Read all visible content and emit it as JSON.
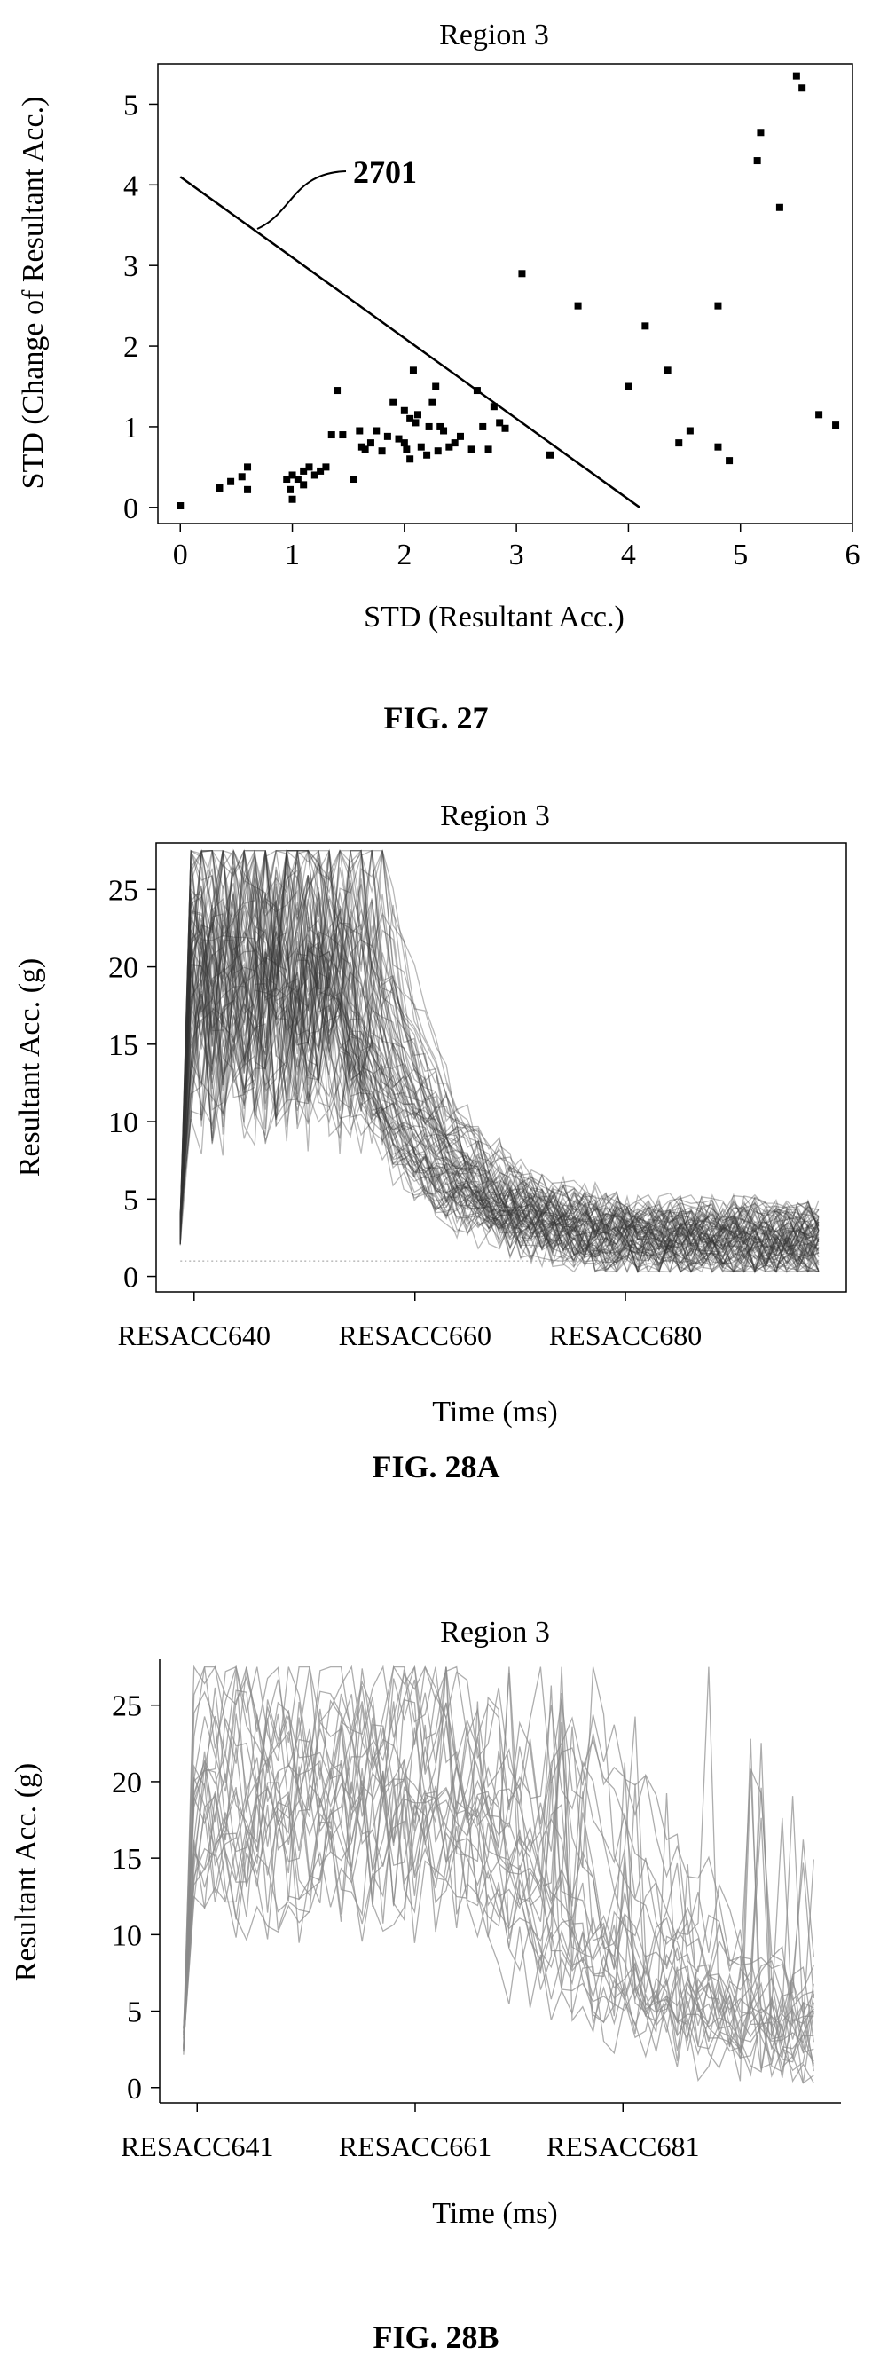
{
  "figures": [
    {
      "label": "FIG. 27"
    },
    {
      "label": "FIG. 28A"
    },
    {
      "label": "FIG. 28B"
    }
  ],
  "chart_data": [
    {
      "type": "scatter",
      "title": "Region 3",
      "xlabel": "STD (Resultant Acc.)",
      "ylabel": "STD (Change of Resultant Acc.)",
      "xlim": [
        -0.2,
        6.0
      ],
      "ylim": [
        -0.2,
        5.5
      ],
      "xticks": [
        0,
        1,
        2,
        3,
        4,
        5,
        6
      ],
      "yticks": [
        0,
        1,
        2,
        3,
        4,
        5
      ],
      "points": [
        [
          0.0,
          0.02
        ],
        [
          0.35,
          0.24
        ],
        [
          0.45,
          0.32
        ],
        [
          0.55,
          0.38
        ],
        [
          0.6,
          0.5
        ],
        [
          0.6,
          0.22
        ],
        [
          0.95,
          0.35
        ],
        [
          0.98,
          0.22
        ],
        [
          1.0,
          0.1
        ],
        [
          1.0,
          0.4
        ],
        [
          1.05,
          0.35
        ],
        [
          1.1,
          0.45
        ],
        [
          1.1,
          0.28
        ],
        [
          1.15,
          0.5
        ],
        [
          1.2,
          0.4
        ],
        [
          1.25,
          0.45
        ],
        [
          1.3,
          0.5
        ],
        [
          1.35,
          0.9
        ],
        [
          1.4,
          1.45
        ],
        [
          1.45,
          0.9
        ],
        [
          1.55,
          0.35
        ],
        [
          1.6,
          0.95
        ],
        [
          1.62,
          0.75
        ],
        [
          1.65,
          0.72
        ],
        [
          1.7,
          0.8
        ],
        [
          1.75,
          0.95
        ],
        [
          1.8,
          0.7
        ],
        [
          1.85,
          0.88
        ],
        [
          1.9,
          1.3
        ],
        [
          1.95,
          0.85
        ],
        [
          2.0,
          1.2
        ],
        [
          2.0,
          0.8
        ],
        [
          2.02,
          0.72
        ],
        [
          2.05,
          1.1
        ],
        [
          2.05,
          0.6
        ],
        [
          2.08,
          1.7
        ],
        [
          2.1,
          1.05
        ],
        [
          2.12,
          1.15
        ],
        [
          2.15,
          0.75
        ],
        [
          2.2,
          0.65
        ],
        [
          2.22,
          1.0
        ],
        [
          2.25,
          1.3
        ],
        [
          2.28,
          1.5
        ],
        [
          2.3,
          0.7
        ],
        [
          2.32,
          1.0
        ],
        [
          2.35,
          0.95
        ],
        [
          2.4,
          0.75
        ],
        [
          2.45,
          0.8
        ],
        [
          2.5,
          0.88
        ],
        [
          2.6,
          0.72
        ],
        [
          2.65,
          1.45
        ],
        [
          2.7,
          1.0
        ],
        [
          2.75,
          0.72
        ],
        [
          2.8,
          1.25
        ],
        [
          2.85,
          1.05
        ],
        [
          2.9,
          0.98
        ],
        [
          3.05,
          2.9
        ],
        [
          3.3,
          0.65
        ],
        [
          3.55,
          2.5
        ],
        [
          4.0,
          1.5
        ],
        [
          4.15,
          2.25
        ],
        [
          4.35,
          1.7
        ],
        [
          4.45,
          0.8
        ],
        [
          4.55,
          0.95
        ],
        [
          4.8,
          2.5
        ],
        [
          4.8,
          0.75
        ],
        [
          4.9,
          0.58
        ],
        [
          5.15,
          4.3
        ],
        [
          5.18,
          4.65
        ],
        [
          5.35,
          3.72
        ],
        [
          5.5,
          5.35
        ],
        [
          5.55,
          5.2
        ],
        [
          5.7,
          1.15
        ],
        [
          5.85,
          1.02
        ]
      ],
      "line": {
        "label": "2701",
        "from": [
          0.0,
          4.1
        ],
        "to": [
          4.1,
          0.0
        ]
      }
    },
    {
      "type": "line",
      "title": "Region 3",
      "xlabel": "Time (ms)",
      "ylabel": "Resultant Acc. (g)",
      "ylim": [
        -1,
        28
      ],
      "yticks": [
        0,
        5,
        10,
        15,
        20,
        25
      ],
      "xticklabels": [
        "RESACC640",
        "RESACC660",
        "RESACC680"
      ],
      "trace_count": 80,
      "trace_color": "#333333"
    },
    {
      "type": "line",
      "title": "Region 3",
      "xlabel": "Time (ms)",
      "ylabel": "Resultant Acc. (g)",
      "ylim": [
        -1,
        28
      ],
      "yticks": [
        0,
        5,
        10,
        15,
        20,
        25
      ],
      "xticklabels": [
        "RESACC641",
        "RESACC661",
        "RESACC681"
      ],
      "trace_count": 24,
      "trace_color": "#8a8a8a"
    }
  ]
}
